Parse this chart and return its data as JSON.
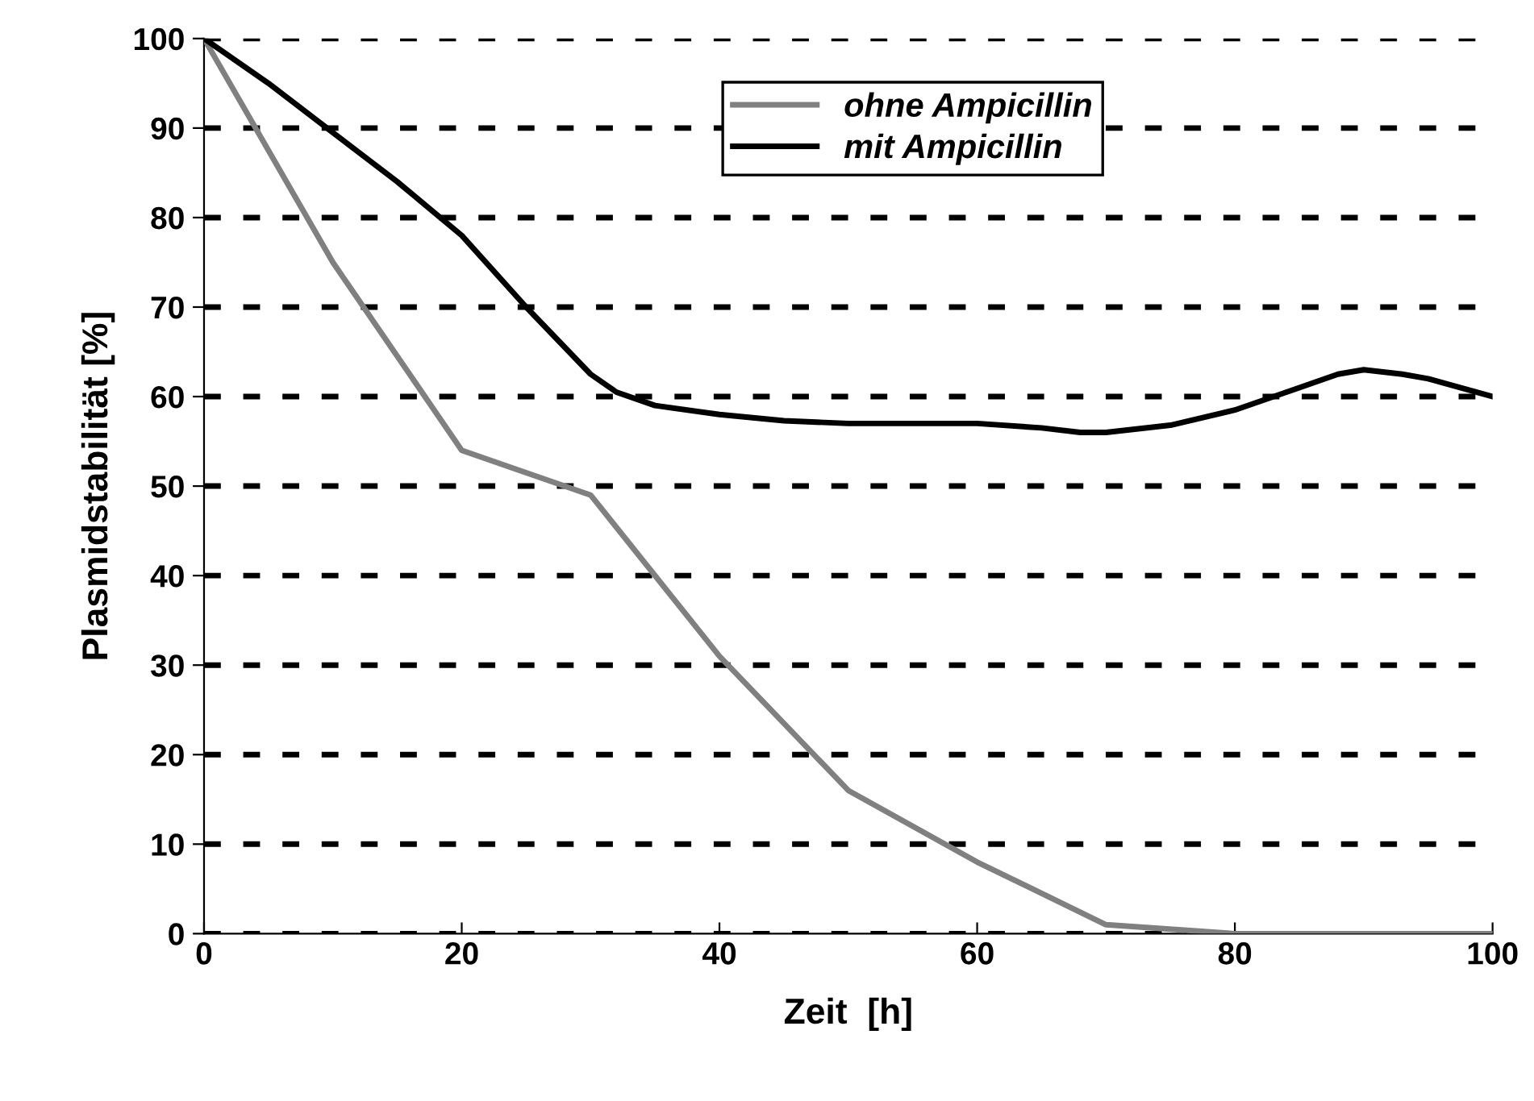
{
  "chart_data": {
    "type": "line",
    "xlabel": "Zeit  [h]",
    "ylabel": "Plasmidstabilität [%]",
    "xlim": [
      0,
      100
    ],
    "xticks": [
      0,
      20,
      40,
      60,
      80,
      100
    ],
    "ylim": [
      0,
      100
    ],
    "yticks": [
      0,
      10,
      20,
      30,
      40,
      50,
      60,
      70,
      80,
      90,
      100
    ],
    "grid": "y",
    "legend": "top",
    "marker": "none",
    "line_style": "solid",
    "series": [
      {
        "name": "ohne Ampicillin",
        "color": "#808080",
        "x": [
          0,
          10,
          20,
          30,
          40,
          50,
          60,
          70,
          80,
          90,
          100
        ],
        "values": [
          100,
          75,
          54,
          49,
          31,
          16,
          8,
          1,
          0,
          0,
          0
        ]
      },
      {
        "name": "mit Ampicillin",
        "color": "#000000",
        "x": [
          0,
          5,
          10,
          15,
          20,
          25,
          30,
          32,
          35,
          40,
          45,
          50,
          60,
          65,
          68,
          70,
          75,
          80,
          85,
          88,
          90,
          93,
          95,
          100
        ],
        "values": [
          100,
          95,
          89.5,
          84,
          78,
          70,
          62.5,
          60.5,
          59,
          58,
          57.3,
          57,
          57,
          56.5,
          56,
          56,
          56.8,
          58.5,
          61,
          62.5,
          63,
          62.5,
          62,
          60
        ]
      }
    ]
  }
}
